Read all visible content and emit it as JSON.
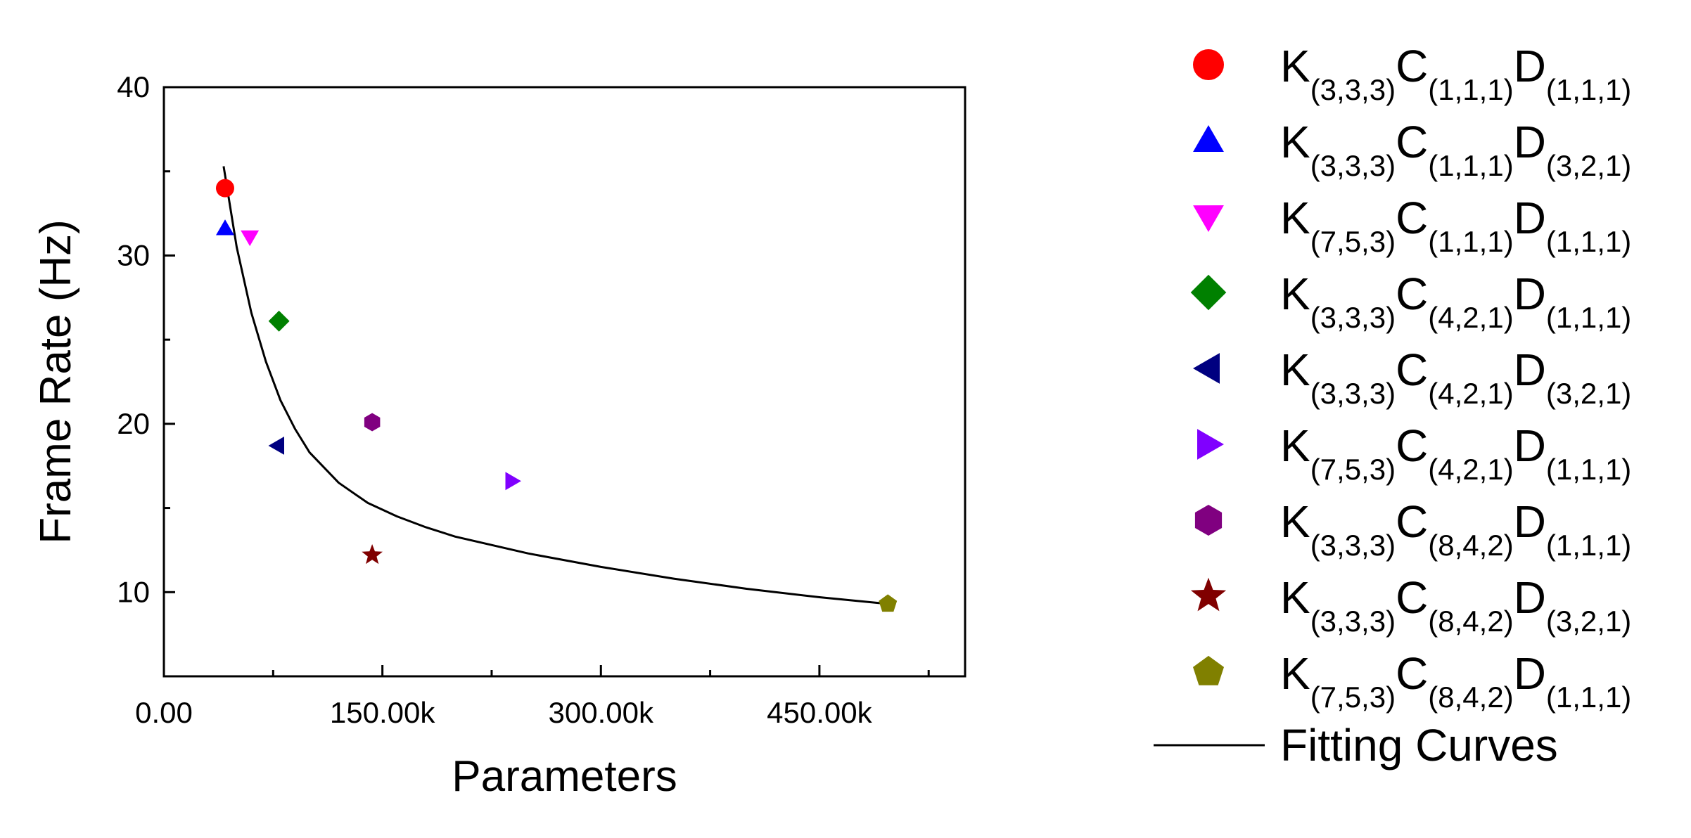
{
  "chart_data": {
    "type": "scatter",
    "xlabel": "Parameters",
    "ylabel": "Frame Rate (Hz)",
    "xlim": [
      0,
      550000
    ],
    "ylim": [
      5,
      40
    ],
    "xticks": [
      {
        "value": 0,
        "label": "0.00"
      },
      {
        "value": 150000,
        "label": "150.00k"
      },
      {
        "value": 300000,
        "label": "300.00k"
      },
      {
        "value": 450000,
        "label": "450.00k"
      }
    ],
    "xminor": [
      75000,
      225000,
      375000,
      525000
    ],
    "yticks": [
      {
        "value": 10,
        "label": "10"
      },
      {
        "value": 20,
        "label": "20"
      },
      {
        "value": 30,
        "label": "30"
      },
      {
        "value": 40,
        "label": "40"
      }
    ],
    "yminor": [
      15,
      25,
      35
    ],
    "grid": false,
    "legend_position": "right",
    "series": [
      {
        "parts": [
          "K",
          "(3,3,3)",
          "C",
          "(1,1,1)",
          "D",
          "(1,1,1)"
        ],
        "marker": "circle",
        "color": "#ff0000",
        "x": 42000,
        "y": 34.0
      },
      {
        "parts": [
          "K",
          "(3,3,3)",
          "C",
          "(1,1,1)",
          "D",
          "(3,2,1)"
        ],
        "marker": "triangle-up",
        "color": "#0000ff",
        "x": 42000,
        "y": 31.6
      },
      {
        "parts": [
          "K",
          "(7,5,3)",
          "C",
          "(1,1,1)",
          "D",
          "(1,1,1)"
        ],
        "marker": "triangle-down",
        "color": "#ff00ff",
        "x": 59000,
        "y": 31.1
      },
      {
        "parts": [
          "K",
          "(3,3,3)",
          "C",
          "(4,2,1)",
          "D",
          "(1,1,1)"
        ],
        "marker": "diamond",
        "color": "#008000",
        "x": 79000,
        "y": 26.1
      },
      {
        "parts": [
          "K",
          "(3,3,3)",
          "C",
          "(4,2,1)",
          "D",
          "(3,2,1)"
        ],
        "marker": "triangle-left",
        "color": "#000080",
        "x": 78000,
        "y": 18.7
      },
      {
        "parts": [
          "K",
          "(7,5,3)",
          "C",
          "(4,2,1)",
          "D",
          "(1,1,1)"
        ],
        "marker": "triangle-right",
        "color": "#8000ff",
        "x": 239000,
        "y": 16.6
      },
      {
        "parts": [
          "K",
          "(3,3,3)",
          "C",
          "(8,4,2)",
          "D",
          "(1,1,1)"
        ],
        "marker": "hexagon",
        "color": "#800080",
        "x": 143000,
        "y": 20.1
      },
      {
        "parts": [
          "K",
          "(3,3,3)",
          "C",
          "(8,4,2)",
          "D",
          "(3,2,1)"
        ],
        "marker": "star",
        "color": "#800000",
        "x": 143000,
        "y": 12.2
      },
      {
        "parts": [
          "K",
          "(7,5,3)",
          "C",
          "(8,4,2)",
          "D",
          "(1,1,1)"
        ],
        "marker": "pentagon",
        "color": "#808000",
        "x": 497000,
        "y": 9.3
      }
    ],
    "fit": {
      "name": "Fitting Curves",
      "color": "#000000",
      "x": [
        41000,
        50000,
        60000,
        70000,
        80000,
        90000,
        100000,
        120000,
        140000,
        160000,
        180000,
        200000,
        250000,
        300000,
        350000,
        400000,
        450000,
        497000
      ],
      "y": [
        35.3,
        30.5,
        26.6,
        23.7,
        21.4,
        19.7,
        18.3,
        16.5,
        15.3,
        14.5,
        13.85,
        13.3,
        12.3,
        11.5,
        10.8,
        10.2,
        9.7,
        9.3
      ]
    }
  }
}
